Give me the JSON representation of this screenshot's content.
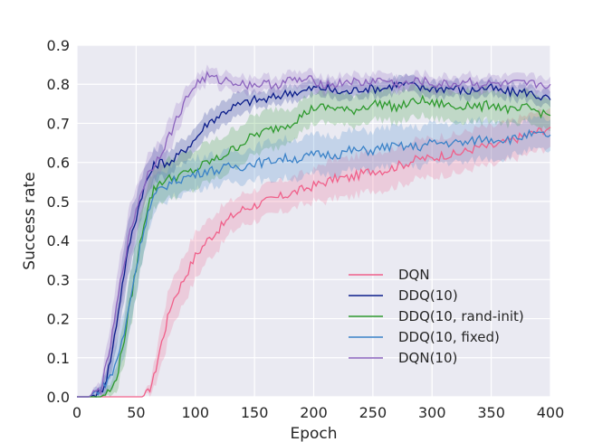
{
  "chart_data": {
    "type": "line",
    "title": "",
    "xlabel": "Epoch",
    "ylabel": "Success rate",
    "xlim": [
      0,
      400
    ],
    "ylim": [
      0.0,
      0.9
    ],
    "xticks": [
      0,
      50,
      100,
      150,
      200,
      250,
      300,
      350,
      400
    ],
    "yticks": [
      0.0,
      0.1,
      0.2,
      0.3,
      0.4,
      0.5,
      0.6,
      0.7,
      0.8,
      0.9
    ],
    "xtick_labels": [
      "0",
      "50",
      "100",
      "150",
      "200",
      "250",
      "300",
      "350",
      "400"
    ],
    "ytick_labels": [
      "0.0",
      "0.1",
      "0.2",
      "0.3",
      "0.4",
      "0.5",
      "0.6",
      "0.7",
      "0.8",
      "0.9"
    ],
    "grid": true,
    "background": "#eaeaf2",
    "legend_position": "bottom-right",
    "shaded_bands": true,
    "series": [
      {
        "name": "DQN",
        "color": "#f0608a",
        "x": [
          0,
          10,
          20,
          30,
          40,
          50,
          55,
          60,
          65,
          70,
          75,
          80,
          90,
          100,
          110,
          120,
          130,
          140,
          150,
          160,
          170,
          180,
          190,
          200,
          210,
          220,
          230,
          240,
          250,
          260,
          270,
          280,
          290,
          300,
          310,
          320,
          330,
          340,
          350,
          360,
          370,
          380,
          390,
          400
        ],
        "y": [
          0,
          0,
          0,
          0,
          0,
          0,
          0,
          0.01,
          0.05,
          0.12,
          0.18,
          0.24,
          0.3,
          0.36,
          0.4,
          0.43,
          0.46,
          0.48,
          0.49,
          0.5,
          0.51,
          0.52,
          0.53,
          0.54,
          0.55,
          0.56,
          0.56,
          0.57,
          0.58,
          0.58,
          0.59,
          0.6,
          0.61,
          0.61,
          0.62,
          0.62,
          0.63,
          0.64,
          0.64,
          0.65,
          0.66,
          0.67,
          0.68,
          0.69
        ],
        "band": [
          0,
          0,
          0,
          0,
          0,
          0,
          0,
          0.01,
          0.03,
          0.05,
          0.06,
          0.06,
          0.06,
          0.06,
          0.05,
          0.05,
          0.04,
          0.04,
          0.04,
          0.04,
          0.04,
          0.04,
          0.04,
          0.04,
          0.05,
          0.05,
          0.05,
          0.05,
          0.05,
          0.05,
          0.05,
          0.05,
          0.05,
          0.05,
          0.05,
          0.05,
          0.05,
          0.05,
          0.05,
          0.05,
          0.05,
          0.05,
          0.05,
          0.05
        ]
      },
      {
        "name": "DDQ(10)",
        "color": "#0a1c8a",
        "x": [
          0,
          10,
          20,
          25,
          30,
          35,
          40,
          45,
          50,
          55,
          60,
          65,
          70,
          80,
          90,
          100,
          110,
          120,
          130,
          140,
          150,
          160,
          170,
          180,
          190,
          200,
          210,
          220,
          230,
          240,
          250,
          260,
          270,
          280,
          290,
          300,
          310,
          320,
          330,
          340,
          350,
          360,
          370,
          380,
          390,
          400
        ],
        "y": [
          0,
          0,
          0.01,
          0.05,
          0.12,
          0.22,
          0.32,
          0.4,
          0.46,
          0.52,
          0.56,
          0.59,
          0.6,
          0.6,
          0.63,
          0.66,
          0.7,
          0.72,
          0.74,
          0.75,
          0.76,
          0.76,
          0.77,
          0.78,
          0.78,
          0.79,
          0.79,
          0.78,
          0.78,
          0.79,
          0.79,
          0.79,
          0.8,
          0.8,
          0.79,
          0.79,
          0.79,
          0.79,
          0.78,
          0.79,
          0.79,
          0.78,
          0.78,
          0.78,
          0.77,
          0.76
        ],
        "band": [
          0,
          0,
          0.01,
          0.03,
          0.05,
          0.06,
          0.07,
          0.07,
          0.06,
          0.05,
          0.04,
          0.04,
          0.04,
          0.03,
          0.03,
          0.03,
          0.03,
          0.03,
          0.03,
          0.03,
          0.02,
          0.02,
          0.02,
          0.02,
          0.02,
          0.02,
          0.02,
          0.02,
          0.02,
          0.02,
          0.02,
          0.02,
          0.02,
          0.02,
          0.02,
          0.02,
          0.02,
          0.02,
          0.02,
          0.02,
          0.02,
          0.02,
          0.02,
          0.02,
          0.02,
          0.02
        ]
      },
      {
        "name": "DDQ(10, rand-init)",
        "color": "#2e9a2e",
        "x": [
          0,
          10,
          20,
          30,
          35,
          40,
          45,
          50,
          55,
          60,
          65,
          70,
          80,
          90,
          100,
          110,
          120,
          130,
          140,
          150,
          160,
          170,
          180,
          190,
          200,
          210,
          220,
          230,
          240,
          250,
          260,
          270,
          280,
          290,
          300,
          310,
          320,
          330,
          340,
          350,
          360,
          370,
          380,
          390,
          400
        ],
        "y": [
          0,
          0,
          0,
          0.02,
          0.07,
          0.15,
          0.24,
          0.33,
          0.42,
          0.49,
          0.53,
          0.55,
          0.56,
          0.57,
          0.58,
          0.6,
          0.61,
          0.63,
          0.65,
          0.67,
          0.68,
          0.69,
          0.7,
          0.72,
          0.74,
          0.74,
          0.74,
          0.73,
          0.74,
          0.75,
          0.75,
          0.74,
          0.75,
          0.76,
          0.75,
          0.75,
          0.74,
          0.75,
          0.74,
          0.75,
          0.74,
          0.73,
          0.74,
          0.73,
          0.72
        ],
        "band": [
          0,
          0,
          0,
          0.02,
          0.04,
          0.06,
          0.07,
          0.07,
          0.07,
          0.06,
          0.05,
          0.05,
          0.05,
          0.05,
          0.05,
          0.05,
          0.05,
          0.05,
          0.05,
          0.05,
          0.05,
          0.05,
          0.04,
          0.04,
          0.04,
          0.04,
          0.04,
          0.04,
          0.04,
          0.04,
          0.04,
          0.04,
          0.04,
          0.04,
          0.04,
          0.04,
          0.04,
          0.04,
          0.04,
          0.04,
          0.04,
          0.04,
          0.04,
          0.04,
          0.04
        ]
      },
      {
        "name": "DDQ(10, fixed)",
        "color": "#3a82c8",
        "x": [
          0,
          10,
          20,
          30,
          40,
          45,
          50,
          55,
          60,
          65,
          70,
          80,
          90,
          100,
          110,
          120,
          130,
          140,
          150,
          160,
          170,
          180,
          190,
          200,
          210,
          220,
          230,
          240,
          250,
          260,
          270,
          280,
          290,
          300,
          310,
          320,
          330,
          340,
          350,
          360,
          370,
          380,
          390,
          400
        ],
        "y": [
          0,
          0,
          0.02,
          0.06,
          0.16,
          0.25,
          0.33,
          0.41,
          0.47,
          0.51,
          0.53,
          0.55,
          0.56,
          0.57,
          0.58,
          0.58,
          0.59,
          0.59,
          0.6,
          0.6,
          0.61,
          0.61,
          0.61,
          0.62,
          0.62,
          0.62,
          0.63,
          0.63,
          0.63,
          0.64,
          0.64,
          0.64,
          0.64,
          0.65,
          0.65,
          0.65,
          0.65,
          0.66,
          0.66,
          0.66,
          0.66,
          0.67,
          0.67,
          0.67
        ],
        "band": [
          0,
          0,
          0.02,
          0.04,
          0.06,
          0.07,
          0.07,
          0.06,
          0.05,
          0.05,
          0.04,
          0.04,
          0.04,
          0.04,
          0.04,
          0.04,
          0.04,
          0.04,
          0.04,
          0.05,
          0.05,
          0.05,
          0.05,
          0.05,
          0.05,
          0.05,
          0.05,
          0.05,
          0.05,
          0.05,
          0.05,
          0.05,
          0.05,
          0.05,
          0.05,
          0.05,
          0.05,
          0.05,
          0.05,
          0.05,
          0.04,
          0.04,
          0.04,
          0.04
        ]
      },
      {
        "name": "DQN(10)",
        "color": "#8c64be",
        "x": [
          0,
          10,
          20,
          25,
          30,
          35,
          40,
          45,
          50,
          55,
          60,
          70,
          80,
          90,
          100,
          110,
          120,
          130,
          140,
          150,
          160,
          170,
          180,
          190,
          200,
          210,
          220,
          230,
          240,
          250,
          260,
          270,
          280,
          290,
          300,
          310,
          320,
          330,
          340,
          350,
          360,
          370,
          380,
          390,
          400
        ],
        "y": [
          0,
          0,
          0.02,
          0.08,
          0.16,
          0.26,
          0.35,
          0.42,
          0.48,
          0.53,
          0.57,
          0.62,
          0.68,
          0.75,
          0.8,
          0.82,
          0.81,
          0.81,
          0.8,
          0.8,
          0.8,
          0.8,
          0.81,
          0.81,
          0.81,
          0.8,
          0.8,
          0.81,
          0.8,
          0.81,
          0.81,
          0.8,
          0.8,
          0.81,
          0.8,
          0.8,
          0.8,
          0.81,
          0.8,
          0.8,
          0.8,
          0.8,
          0.8,
          0.8,
          0.8
        ],
        "band": [
          0,
          0,
          0.02,
          0.04,
          0.06,
          0.07,
          0.07,
          0.07,
          0.06,
          0.05,
          0.05,
          0.04,
          0.04,
          0.03,
          0.02,
          0.02,
          0.02,
          0.02,
          0.02,
          0.02,
          0.02,
          0.02,
          0.02,
          0.02,
          0.02,
          0.02,
          0.02,
          0.02,
          0.02,
          0.02,
          0.02,
          0.02,
          0.02,
          0.02,
          0.02,
          0.02,
          0.02,
          0.02,
          0.02,
          0.02,
          0.02,
          0.02,
          0.02,
          0.02,
          0.02
        ]
      }
    ]
  }
}
